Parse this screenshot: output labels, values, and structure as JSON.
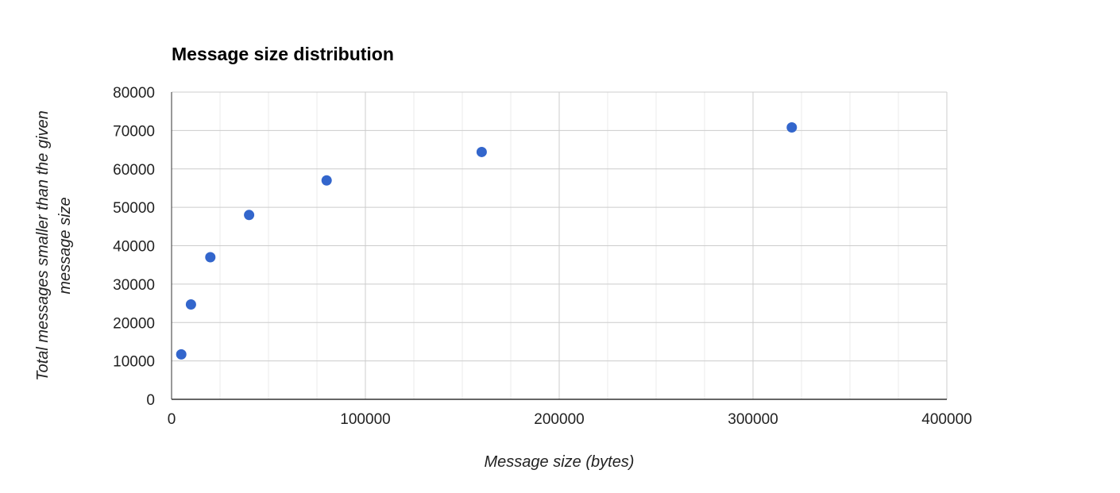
{
  "chart_data": {
    "type": "scatter",
    "title": "Message size distribution",
    "xlabel": "Message size (bytes)",
    "ylabel_lines": [
      "Total messages smaller than the given",
      "message size"
    ],
    "xlim": [
      0,
      400000
    ],
    "ylim": [
      0,
      80000
    ],
    "x_ticks": [
      0,
      100000,
      200000,
      300000,
      400000
    ],
    "y_ticks": [
      0,
      10000,
      20000,
      30000,
      40000,
      50000,
      60000,
      70000,
      80000
    ],
    "x_minor_step": 25000,
    "grid": true,
    "legend": "none",
    "point_color": "#3366cc",
    "points": [
      {
        "x": 5000,
        "y": 11700
      },
      {
        "x": 10000,
        "y": 24700
      },
      {
        "x": 20000,
        "y": 37000
      },
      {
        "x": 40000,
        "y": 48000
      },
      {
        "x": 80000,
        "y": 57000
      },
      {
        "x": 160000,
        "y": 64400
      },
      {
        "x": 320000,
        "y": 70800
      }
    ]
  }
}
